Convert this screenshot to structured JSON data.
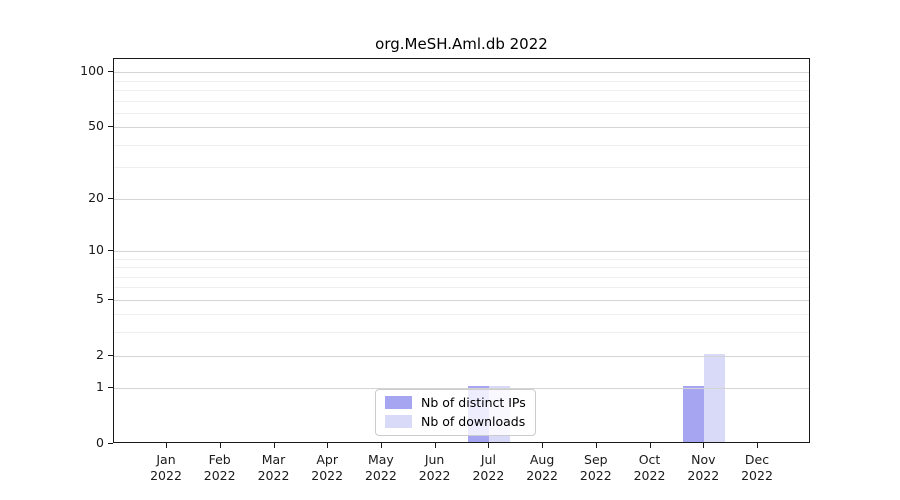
{
  "title": "org.MeSH.Aml.db 2022",
  "chart_data": {
    "type": "bar",
    "title": "org.MeSH.Aml.db 2022",
    "year": "2022",
    "categories": [
      "Jan",
      "Feb",
      "Mar",
      "Apr",
      "May",
      "Jun",
      "Jul",
      "Aug",
      "Sep",
      "Oct",
      "Nov",
      "Dec"
    ],
    "series": [
      {
        "name": "Nb of distinct IPs",
        "color": "#a5a5f2",
        "values": [
          0,
          0,
          0,
          0,
          0,
          0,
          1,
          0,
          0,
          0,
          1,
          0
        ]
      },
      {
        "name": "Nb of downloads",
        "color": "#d9d9f8",
        "values": [
          0,
          0,
          0,
          0,
          0,
          0,
          1,
          0,
          0,
          0,
          2,
          0
        ]
      }
    ],
    "xlabel": "",
    "ylabel": "",
    "yscale": "log1p",
    "ylim": [
      0,
      118
    ],
    "yticks": [
      0,
      1,
      2,
      5,
      10,
      20,
      50,
      100
    ],
    "yticks_minor": [
      3,
      4,
      6,
      7,
      8,
      9,
      30,
      40,
      60,
      70,
      80,
      90
    ],
    "grid": "on",
    "legend_position": "bottom-center",
    "colors": {
      "grid_major": "#d4d4d4",
      "grid_minor": "#efefef",
      "axis_frame": "#1a1a1a",
      "background": "#ffffff"
    }
  }
}
